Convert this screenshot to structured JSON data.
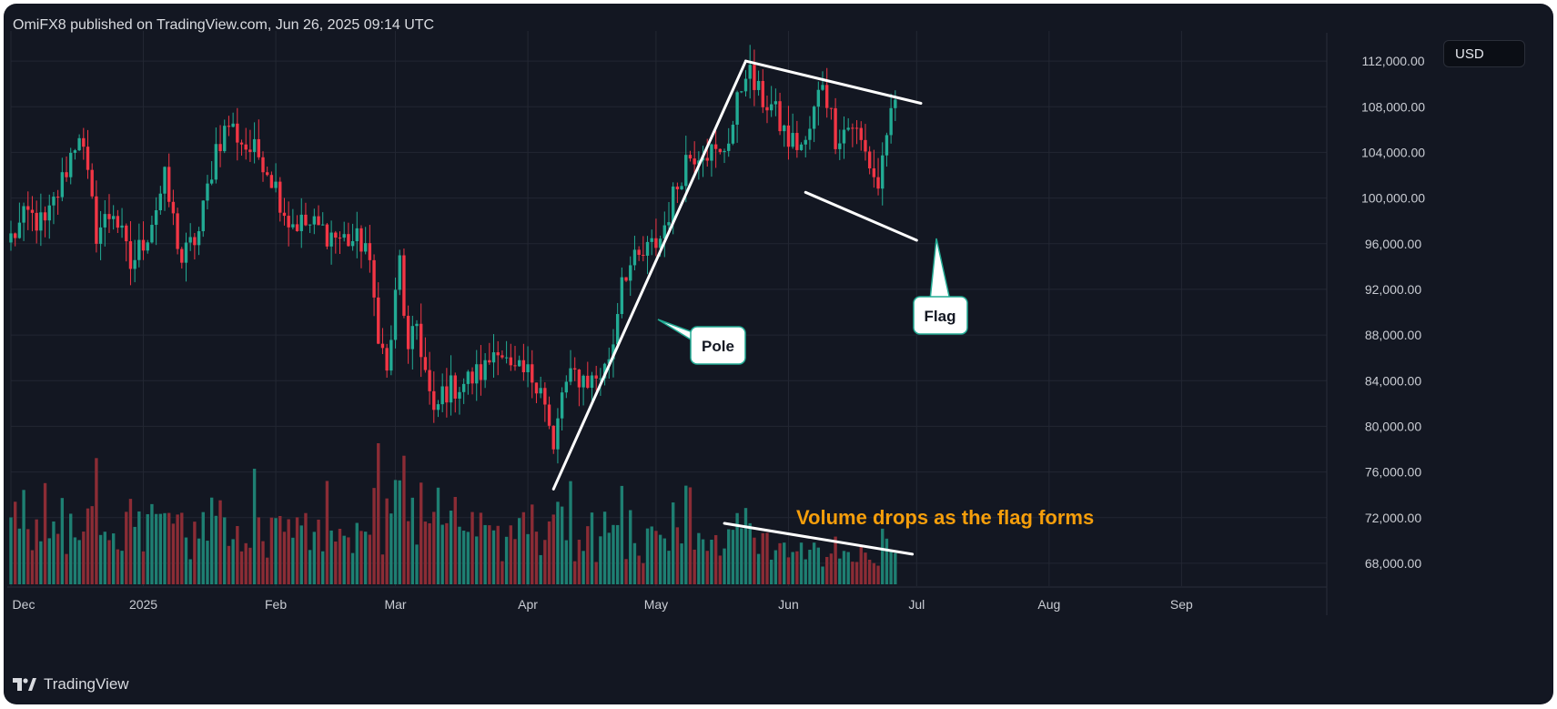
{
  "header": {
    "publisher": "OmiFX8 published on TradingView.com, Jun 26, 2025 09:14 UTC"
  },
  "footer": {
    "brand": "TradingView"
  },
  "currency_badge": "USD",
  "colors": {
    "background": "#131722",
    "up": "#22ab94",
    "down": "#f23645",
    "up_volume": "#1e7f72",
    "down_volume": "#8b2c35",
    "grid": "#232733",
    "annotation": "#ffffff",
    "volume_note": "#f59e0b"
  },
  "annotations": {
    "pole_label": "Pole",
    "flag_label": "Flag",
    "volume_note": "Volume drops as the flag forms"
  },
  "chart_data": {
    "type": "candlestick",
    "ylim": [
      66000,
      114000
    ],
    "y_ticks": [
      68000,
      72000,
      76000,
      80000,
      84000,
      88000,
      92000,
      96000,
      100000,
      104000,
      108000,
      112000
    ],
    "y_tick_labels": [
      "68,000.00",
      "72,000.00",
      "76,000.00",
      "80,000.00",
      "84,000.00",
      "88,000.00",
      "92,000.00",
      "96,000.00",
      "100,000.00",
      "104,000.00",
      "108,000.00",
      "112,000.00"
    ],
    "x_tick_labels": [
      "Dec",
      "2025",
      "Feb",
      "Mar",
      "Apr",
      "May",
      "Jun",
      "Jul",
      "Aug",
      "Sep"
    ],
    "x_tick_dates": [
      "2024-12-01",
      "2025-01-01",
      "2025-02-01",
      "2025-03-01",
      "2025-04-01",
      "2025-05-01",
      "2025-06-01",
      "2025-07-01",
      "2025-08-01",
      "2025-09-01"
    ],
    "x_range": [
      "2024-12-01",
      "2025-10-05"
    ],
    "close_path": [
      [
        "2024-12-01",
        96500
      ],
      [
        "2024-12-05",
        98500
      ],
      [
        "2024-12-09",
        97500
      ],
      [
        "2024-12-13",
        101500
      ],
      [
        "2024-12-17",
        106000
      ],
      [
        "2024-12-21",
        97000
      ],
      [
        "2024-12-25",
        99000
      ],
      [
        "2024-12-29",
        94000
      ],
      [
        "2025-01-02",
        97000
      ],
      [
        "2025-01-06",
        101500
      ],
      [
        "2025-01-10",
        94500
      ],
      [
        "2025-01-14",
        97000
      ],
      [
        "2025-01-18",
        104500
      ],
      [
        "2025-01-21",
        106500
      ],
      [
        "2025-01-25",
        104500
      ],
      [
        "2025-01-29",
        103500
      ],
      [
        "2025-02-01",
        101000
      ],
      [
        "2025-02-04",
        98000
      ],
      [
        "2025-02-10",
        97500
      ],
      [
        "2025-02-16",
        96500
      ],
      [
        "2025-02-22",
        96000
      ],
      [
        "2025-02-25",
        88500
      ],
      [
        "2025-02-27",
        84500
      ],
      [
        "2025-03-02",
        94500
      ],
      [
        "2025-03-04",
        86000
      ],
      [
        "2025-03-06",
        89000
      ],
      [
        "2025-03-10",
        80500
      ],
      [
        "2025-03-12",
        83000
      ],
      [
        "2025-03-18",
        84000
      ],
      [
        "2025-03-22",
        85000
      ],
      [
        "2025-03-25",
        87500
      ],
      [
        "2025-03-28",
        84500
      ],
      [
        "2025-04-01",
        84500
      ],
      [
        "2025-04-04",
        84000
      ],
      [
        "2025-04-07",
        77500
      ],
      [
        "2025-04-09",
        83000
      ],
      [
        "2025-04-12",
        84500
      ],
      [
        "2025-04-16",
        84000
      ],
      [
        "2025-04-19",
        85000
      ],
      [
        "2025-04-21",
        87500
      ],
      [
        "2025-04-23",
        93500
      ],
      [
        "2025-04-27",
        94500
      ],
      [
        "2025-05-02",
        96500
      ],
      [
        "2025-05-08",
        103500
      ],
      [
        "2025-05-12",
        104500
      ],
      [
        "2025-05-16",
        103500
      ],
      [
        "2025-05-19",
        106500
      ],
      [
        "2025-05-22",
        111500
      ],
      [
        "2025-05-25",
        109000
      ],
      [
        "2025-05-28",
        108000
      ],
      [
        "2025-06-01",
        105000
      ],
      [
        "2025-06-05",
        104500
      ],
      [
        "2025-06-09",
        110500
      ],
      [
        "2025-06-12",
        105500
      ],
      [
        "2025-06-16",
        106500
      ],
      [
        "2025-06-20",
        103000
      ],
      [
        "2025-06-22",
        101000
      ],
      [
        "2025-06-24",
        106000
      ],
      [
        "2025-06-26",
        107500
      ]
    ],
    "volume_range": [
      1,
      10
    ],
    "annotation_lines": {
      "pole": [
        [
          "2025-04-07",
          74500
        ],
        [
          "2025-05-22",
          112000
        ]
      ],
      "flag_upper": [
        [
          "2025-05-22",
          112000
        ],
        [
          "2025-07-02",
          108300
        ]
      ],
      "flag_lower": [
        [
          "2025-06-05",
          100500
        ],
        [
          "2025-07-01",
          96300
        ]
      ],
      "volume_trend": [
        [
          "2025-05-17",
          71500
        ],
        [
          "2025-06-30",
          68800
        ]
      ]
    }
  }
}
